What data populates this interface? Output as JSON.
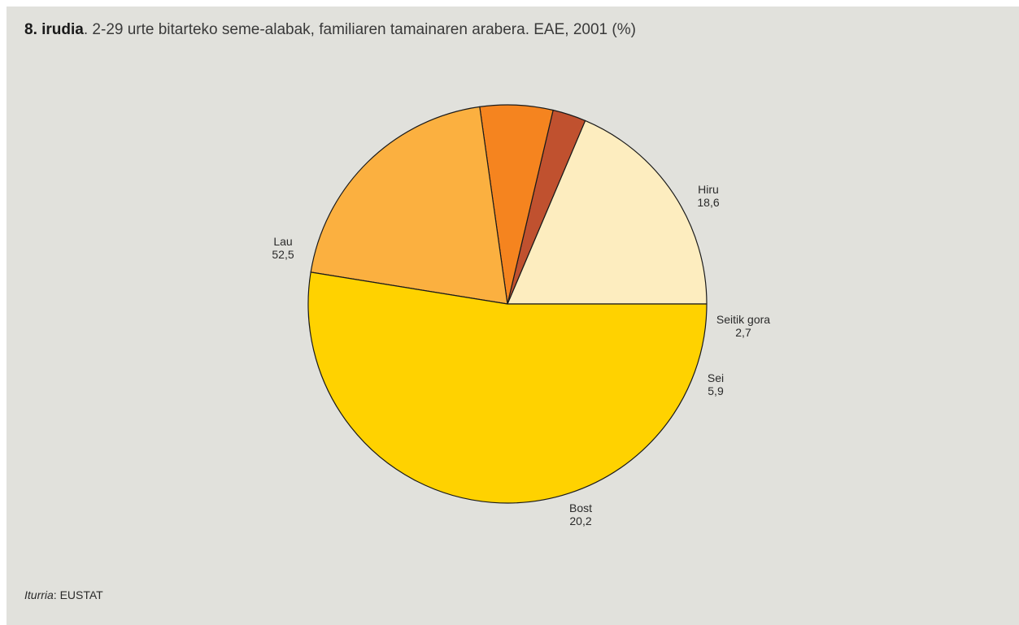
{
  "figure": {
    "number_label": "8. irudia",
    "separator": ".",
    "caption": " 2-29 urte bitarteko seme-alabak, familiaren tamainaren arabera. EAE, 2001 (%)"
  },
  "source": {
    "label": "Iturria",
    "separator": ": ",
    "value": "EUSTAT"
  },
  "chart_data": {
    "type": "pie",
    "title": "8. irudia. 2-29 urte bitarteko seme-alabak, familiaren tamainaren arabera. EAE, 2001 (%)",
    "slices": [
      {
        "label": "Hiru",
        "value": 18.6,
        "value_label": "18,6",
        "color": "#fdedbf"
      },
      {
        "label": "Seitik gora",
        "value": 2.7,
        "value_label": "2,7",
        "color": "#c0512f"
      },
      {
        "label": "Sei",
        "value": 5.9,
        "value_label": "5,9",
        "color": "#f5841f"
      },
      {
        "label": "Bost",
        "value": 20.2,
        "value_label": "20,2",
        "color": "#fbb040"
      },
      {
        "label": "Lau",
        "value": 52.5,
        "value_label": "52,5",
        "color": "#ffd200"
      }
    ],
    "start_angle_deg": 0,
    "direction": "clockwise",
    "stroke_color": "#1a1a1a"
  }
}
